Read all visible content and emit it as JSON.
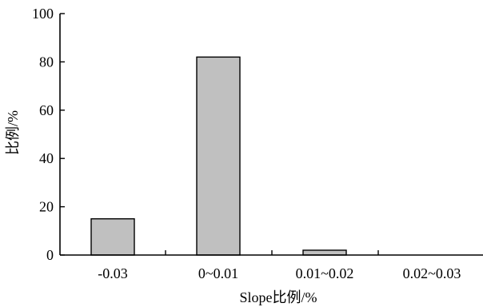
{
  "chart_data": {
    "type": "bar",
    "title": "",
    "categories": [
      "-0.03",
      "0~0.01",
      "0.01~0.02",
      "0.02~0.03"
    ],
    "values": [
      15,
      82,
      2,
      0
    ],
    "xlabel": "Slope比例/%",
    "ylabel": "比例/%",
    "ylim": [
      0,
      100
    ],
    "yticks": [
      "0",
      "20",
      "40",
      "60",
      "80",
      "100"
    ],
    "grid": false,
    "legend": "none",
    "colors": {
      "bar_fill": "#c0c0c0",
      "bar_stroke": "#000000",
      "axis": "#000000"
    }
  }
}
